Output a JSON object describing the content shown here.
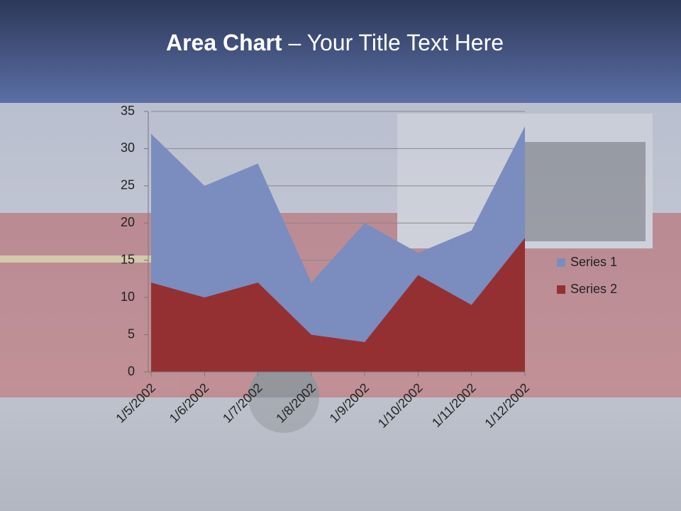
{
  "slide": {
    "title_bold": "Area Chart",
    "title_rest": "– Your Title Text Here"
  },
  "chart_data": {
    "type": "area",
    "x": [
      "1/5/2002",
      "1/6/2002",
      "1/7/2002",
      "1/8/2002",
      "1/9/2002",
      "1/10/2002",
      "1/11/2002",
      "1/12/2002"
    ],
    "series": [
      {
        "name": "Series 1",
        "color": "#7b8cbf",
        "values": [
          32,
          25,
          28,
          12,
          20,
          16,
          19,
          33
        ]
      },
      {
        "name": "Series 2",
        "color": "#953032",
        "values": [
          12,
          10,
          12,
          5,
          4,
          13,
          9,
          18
        ]
      }
    ],
    "ylim": [
      0,
      35
    ],
    "yticks": [
      0,
      5,
      10,
      15,
      20,
      25,
      30,
      35
    ],
    "grid": true,
    "legend": "right"
  }
}
